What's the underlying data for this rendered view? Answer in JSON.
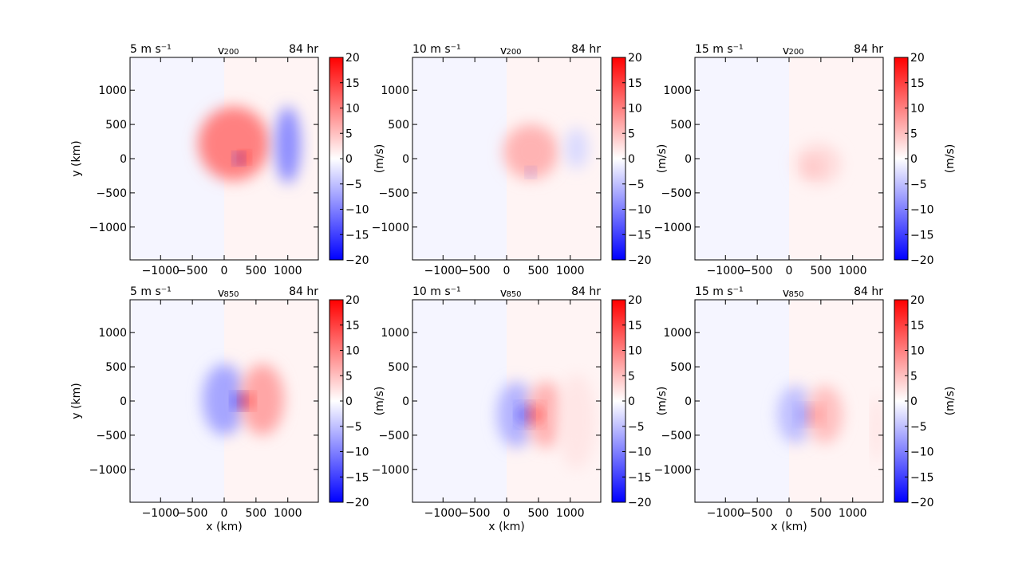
{
  "figure": {
    "x_tick_labels": [
      "−1000",
      "−500",
      "0",
      "500",
      "1000"
    ],
    "y_tick_labels": [
      "1000",
      "500",
      "0",
      "−500",
      "−1000"
    ],
    "colorbar_tick_labels": [
      "20",
      "15",
      "10",
      "5",
      "0",
      "−5",
      "−10",
      "−15",
      "−20"
    ],
    "xlabel": "x (km)",
    "ylabel": "y (km)",
    "colorbar_label": "(m/s)"
  },
  "chart_data": [
    {
      "type": "heatmap",
      "title_left": "5 m s⁻¹",
      "title_center": "v",
      "title_center_sub": "200",
      "title_right": "84 hr",
      "x_ticks": [
        -1000,
        -500,
        0,
        500,
        1000
      ],
      "y_ticks": [
        1000,
        500,
        0,
        -500,
        -1000
      ],
      "xlim": [
        -1480,
        1480
      ],
      "ylim": [
        -1480,
        1480
      ],
      "colorbar": {
        "min": -20,
        "max": 20,
        "ticks": [
          20,
          15,
          10,
          5,
          0,
          -5,
          -10,
          -15,
          -20
        ],
        "colors": [
          "#0000ff",
          "#ffffff",
          "#ff0000"
        ]
      },
      "features": [
        {
          "kind": "blob",
          "x": 150,
          "y": 220,
          "rx": 560,
          "ry": 540,
          "value": 10
        },
        {
          "kind": "blob",
          "x": 1000,
          "y": 200,
          "rx": 200,
          "ry": 560,
          "value": -9
        },
        {
          "kind": "blob",
          "x": 230,
          "y": 0,
          "rx": 60,
          "ry": 60,
          "value": -20
        },
        {
          "kind": "blob",
          "x": 320,
          "y": 20,
          "rx": 60,
          "ry": 60,
          "value": 20
        }
      ]
    },
    {
      "type": "heatmap",
      "title_left": "10 m s⁻¹",
      "title_center": "v",
      "title_center_sub": "200",
      "title_right": "84 hr",
      "x_ticks": [
        -1000,
        -500,
        0,
        500,
        1000
      ],
      "y_ticks": [
        1000,
        500,
        0,
        -500,
        -1000
      ],
      "xlim": [
        -1480,
        1480
      ],
      "ylim": [
        -1480,
        1480
      ],
      "colorbar": {
        "min": -20,
        "max": 20,
        "ticks": [
          20,
          15,
          10,
          5,
          0,
          -5,
          -10,
          -15,
          -20
        ],
        "colors": [
          "#0000ff",
          "#ffffff",
          "#ff0000"
        ]
      },
      "features": [
        {
          "kind": "blob",
          "x": 380,
          "y": 100,
          "rx": 430,
          "ry": 400,
          "value": 6
        },
        {
          "kind": "blob",
          "x": 1100,
          "y": 150,
          "rx": 180,
          "ry": 300,
          "value": -3
        },
        {
          "kind": "blob",
          "x": 380,
          "y": -200,
          "rx": 50,
          "ry": 50,
          "value": -14
        }
      ]
    },
    {
      "type": "heatmap",
      "title_left": "15 m s⁻¹",
      "title_center": "v",
      "title_center_sub": "200",
      "title_right": "84 hr",
      "x_ticks": [
        -1000,
        -500,
        0,
        500,
        1000
      ],
      "y_ticks": [
        1000,
        500,
        0,
        -500,
        -1000
      ],
      "xlim": [
        -1480,
        1480
      ],
      "ylim": [
        -1480,
        1480
      ],
      "colorbar": {
        "min": -20,
        "max": 20,
        "ticks": [
          20,
          15,
          10,
          5,
          0,
          -5,
          -10,
          -15,
          -20
        ],
        "colors": [
          "#0000ff",
          "#ffffff",
          "#ff0000"
        ]
      },
      "features": [
        {
          "kind": "blob",
          "x": 450,
          "y": -80,
          "rx": 360,
          "ry": 300,
          "value": 3
        },
        {
          "kind": "blob",
          "x": 380,
          "y": -120,
          "rx": 120,
          "ry": 110,
          "value": 5
        }
      ]
    },
    {
      "type": "heatmap",
      "title_left": "5 m s⁻¹",
      "title_center": "v",
      "title_center_sub": "850",
      "title_right": "84 hr",
      "x_ticks": [
        -1000,
        -500,
        0,
        500,
        1000
      ],
      "y_ticks": [
        1000,
        500,
        0,
        -500,
        -1000
      ],
      "xlim": [
        -1480,
        1480
      ],
      "ylim": [
        -1480,
        1480
      ],
      "colorbar": {
        "min": -20,
        "max": 20,
        "ticks": [
          20,
          15,
          10,
          5,
          0,
          -5,
          -10,
          -15,
          -20
        ],
        "colors": [
          "#0000ff",
          "#ffffff",
          "#ff0000"
        ]
      },
      "features": [
        {
          "kind": "blob",
          "x": 0,
          "y": 20,
          "rx": 340,
          "ry": 520,
          "value": -7
        },
        {
          "kind": "blob",
          "x": 600,
          "y": 20,
          "rx": 340,
          "ry": 520,
          "value": 7
        },
        {
          "kind": "blob",
          "x": 230,
          "y": 0,
          "rx": 80,
          "ry": 80,
          "value": -20
        },
        {
          "kind": "blob",
          "x": 360,
          "y": 0,
          "rx": 80,
          "ry": 80,
          "value": 20
        }
      ]
    },
    {
      "type": "heatmap",
      "title_left": "10 m s⁻¹",
      "title_center": "v",
      "title_center_sub": "850",
      "title_right": "84 hr",
      "x_ticks": [
        -1000,
        -500,
        0,
        500,
        1000
      ],
      "y_ticks": [
        1000,
        500,
        0,
        -500,
        -1000
      ],
      "xlim": [
        -1480,
        1480
      ],
      "ylim": [
        -1480,
        1480
      ],
      "colorbar": {
        "min": -20,
        "max": 20,
        "ticks": [
          20,
          15,
          10,
          5,
          0,
          -5,
          -10,
          -15,
          -20
        ],
        "colors": [
          "#0000ff",
          "#ffffff",
          "#ff0000"
        ]
      },
      "features": [
        {
          "kind": "blob",
          "x": 150,
          "y": -200,
          "rx": 300,
          "ry": 480,
          "value": -6
        },
        {
          "kind": "blob",
          "x": 620,
          "y": -200,
          "rx": 300,
          "ry": 480,
          "value": 6
        },
        {
          "kind": "blob",
          "x": 280,
          "y": -200,
          "rx": 90,
          "ry": 110,
          "value": -16
        },
        {
          "kind": "blob",
          "x": 460,
          "y": -200,
          "rx": 90,
          "ry": 110,
          "value": 16
        },
        {
          "kind": "blob",
          "x": 1100,
          "y": -300,
          "rx": 300,
          "ry": 700,
          "value": 2
        }
      ]
    },
    {
      "type": "heatmap",
      "title_left": "15 m s⁻¹",
      "title_center": "v",
      "title_center_sub": "850",
      "title_right": "84 hr",
      "x_ticks": [
        -1000,
        -500,
        0,
        500,
        1000
      ],
      "y_ticks": [
        1000,
        500,
        0,
        -500,
        -1000
      ],
      "xlim": [
        -1480,
        1480
      ],
      "ylim": [
        -1480,
        1480
      ],
      "colorbar": {
        "min": -20,
        "max": 20,
        "ticks": [
          20,
          15,
          10,
          5,
          0,
          -5,
          -10,
          -15,
          -20
        ],
        "colors": [
          "#0000ff",
          "#ffffff",
          "#ff0000"
        ]
      },
      "features": [
        {
          "kind": "blob",
          "x": 100,
          "y": -200,
          "rx": 280,
          "ry": 420,
          "value": -5
        },
        {
          "kind": "blob",
          "x": 560,
          "y": -200,
          "rx": 280,
          "ry": 420,
          "value": 5
        },
        {
          "kind": "blob",
          "x": 230,
          "y": -200,
          "rx": 90,
          "ry": 100,
          "value": -10
        },
        {
          "kind": "blob",
          "x": 420,
          "y": -200,
          "rx": 90,
          "ry": 100,
          "value": 10
        },
        {
          "kind": "blob",
          "x": 1380,
          "y": -400,
          "rx": 60,
          "ry": 500,
          "value": 3
        }
      ]
    }
  ]
}
